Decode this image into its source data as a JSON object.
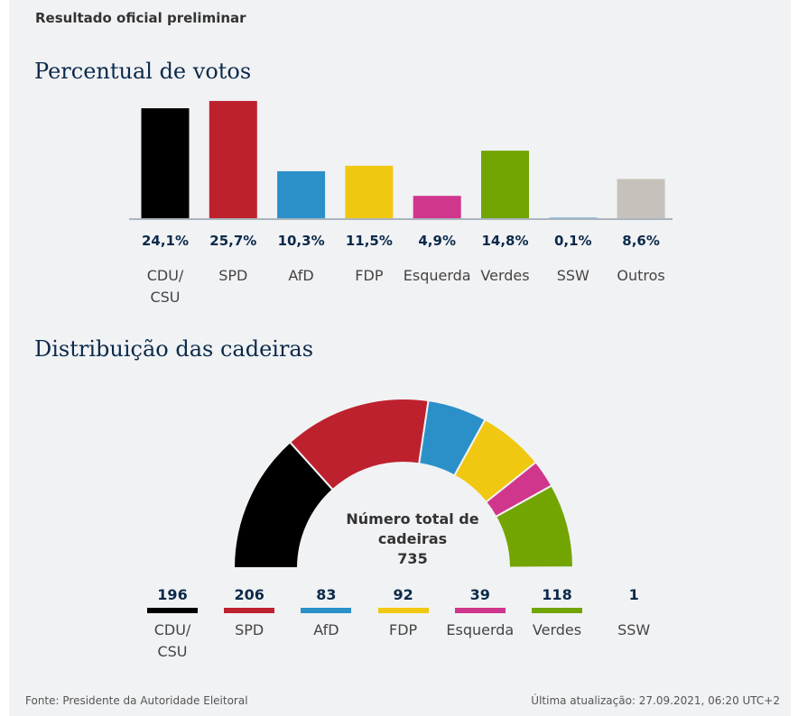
{
  "subtitle": "Resultado oficial preliminar",
  "footer": {
    "source": "Fonte: Presidente da Autoridade Eleitoral",
    "updated": "Última atualização: 27.09.2021, 06:20 UTC+2"
  },
  "chart_data": [
    {
      "type": "bar",
      "title": "Percentual de votos",
      "categories": [
        "CDU/\nCSU",
        "SPD",
        "AfD",
        "FDP",
        "Esquerda",
        "Verdes",
        "SSW",
        "Outros"
      ],
      "values": [
        24.1,
        25.7,
        10.3,
        11.5,
        4.9,
        14.8,
        0.1,
        8.6
      ],
      "value_labels": [
        "24,1%",
        "25,7%",
        "10,3%",
        "11,5%",
        "4,9%",
        "14,8%",
        "0,1%",
        "8,6%"
      ],
      "colors": [
        "#000000",
        "#be212e",
        "#2b90c8",
        "#f0c811",
        "#cf368c",
        "#72a501",
        "#2b90c8",
        "#c6c2bb"
      ],
      "grid": false
    },
    {
      "type": "pie",
      "subtype": "semicircle",
      "title": "Distribuição das cadeiras",
      "center_label": "Número total de cadeiras",
      "total": "735",
      "categories": [
        "CDU/\nCSU",
        "SPD",
        "AfD",
        "FDP",
        "Esquerda",
        "Verdes",
        "SSW"
      ],
      "values": [
        196,
        206,
        83,
        92,
        39,
        118,
        1
      ],
      "colors": [
        "#000000",
        "#be212e",
        "#2b90c8",
        "#f0c811",
        "#cf368c",
        "#72a501",
        "#2b90c8"
      ]
    }
  ]
}
